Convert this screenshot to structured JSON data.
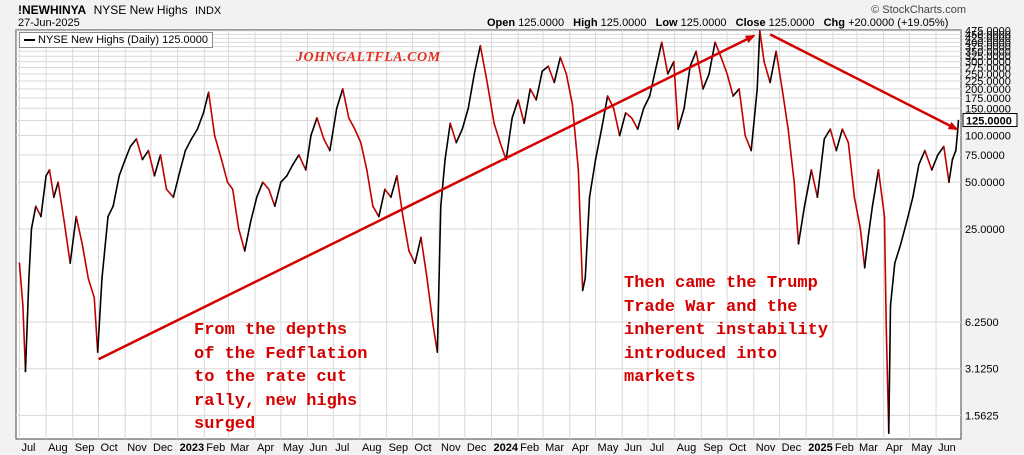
{
  "header": {
    "symbol": "!NEWHINYA",
    "name": "NYSE New Highs",
    "exchange": "INDX",
    "date": "27-Jun-2025",
    "brand": "© StockCharts.com",
    "open_label": "Open",
    "open_value": "125.0000",
    "high_label": "High",
    "high_value": "125.0000",
    "low_label": "Low",
    "low_value": "125.0000",
    "close_label": "Close",
    "close_value": "125.0000",
    "chg_label": "Chg",
    "chg_value": "+20.0000 (+19.05%)"
  },
  "legend": {
    "text": "NYSE New Highs (Daily) 125.0000"
  },
  "watermark": "JOHNGALTFLA.COM",
  "annotations": {
    "left": [
      "From the depths",
      "of the Fedflation",
      "to the rate cut",
      "rally, new highs",
      "surged"
    ],
    "right": [
      "Then came the Trump",
      "Trade War and the",
      "inherent instability",
      "introduced into",
      "markets"
    ]
  },
  "colors": {
    "line_up": "#000000",
    "line_down": "#c00000",
    "annotation": "#d40000",
    "watermark": "#e03020",
    "grid": "#d9d9d9"
  },
  "chart_data": {
    "type": "line",
    "scale": "log",
    "ylim": [
      1.1,
      480
    ],
    "y_ticks": [
      1.5625,
      3.125,
      6.25,
      25,
      50,
      75,
      100,
      125,
      150,
      175,
      200,
      225,
      250,
      275,
      300,
      325,
      350,
      375,
      400,
      425,
      450,
      475
    ],
    "y_tick_labels": [
      "1.5625",
      "3.1250",
      "6.2500",
      "25.0000",
      "50.0000",
      "75.0000",
      "100.0000",
      "125.0000",
      "150.0000",
      "175.0000",
      "200.0000",
      "225.0000",
      "250.0000",
      "275.0000",
      "300.0000",
      "325.0000",
      "350.0000",
      "375.0000",
      "400.0000",
      "425.0000",
      "450.0000",
      "475.0000"
    ],
    "x_labels": [
      "Jul",
      "Aug",
      "Sep",
      "Oct",
      "Nov",
      "Dec",
      "2023",
      "Feb",
      "Mar",
      "Apr",
      "May",
      "Jun",
      "Jul",
      "Aug",
      "Sep",
      "Oct",
      "Nov",
      "Dec",
      "2024",
      "Feb",
      "Mar",
      "Apr",
      "May",
      "Jun",
      "Jul",
      "Aug",
      "Sep",
      "Oct",
      "Nov",
      "Dec",
      "2025",
      "Feb",
      "Mar",
      "Apr",
      "May",
      "Jun"
    ],
    "x_label_dates": [
      "2022-07",
      "2022-08",
      "2022-09",
      "2022-10",
      "2022-11",
      "2022-12",
      "2023-01",
      "2023-02",
      "2023-03",
      "2023-04",
      "2023-05",
      "2023-06",
      "2023-07",
      "2023-08",
      "2023-09",
      "2023-10",
      "2023-11",
      "2023-12",
      "2024-01",
      "2024-02",
      "2024-03",
      "2024-04",
      "2024-05",
      "2024-06",
      "2024-07",
      "2024-08",
      "2024-09",
      "2024-10",
      "2024-11",
      "2024-12",
      "2025-01",
      "2025-02",
      "2025-03",
      "2025-04",
      "2025-05",
      "2025-06"
    ],
    "x_start": "2022-06-27",
    "x_end": "2025-06-30",
    "series": [
      {
        "name": "NYSE New Highs (Daily)",
        "points": [
          [
            "2022-07-01",
            15
          ],
          [
            "2022-07-05",
            8
          ],
          [
            "2022-07-08",
            3
          ],
          [
            "2022-07-12",
            12
          ],
          [
            "2022-07-15",
            25
          ],
          [
            "2022-07-20",
            35
          ],
          [
            "2022-07-26",
            30
          ],
          [
            "2022-08-01",
            55
          ],
          [
            "2022-08-05",
            60
          ],
          [
            "2022-08-10",
            40
          ],
          [
            "2022-08-15",
            50
          ],
          [
            "2022-08-22",
            28
          ],
          [
            "2022-08-29",
            15
          ],
          [
            "2022-09-05",
            30
          ],
          [
            "2022-09-12",
            20
          ],
          [
            "2022-09-19",
            12
          ],
          [
            "2022-09-26",
            9
          ],
          [
            "2022-09-30",
            4
          ],
          [
            "2022-10-05",
            12
          ],
          [
            "2022-10-12",
            30
          ],
          [
            "2022-10-18",
            35
          ],
          [
            "2022-10-25",
            55
          ],
          [
            "2022-11-01",
            70
          ],
          [
            "2022-11-07",
            85
          ],
          [
            "2022-11-14",
            95
          ],
          [
            "2022-11-21",
            70
          ],
          [
            "2022-11-28",
            80
          ],
          [
            "2022-12-05",
            55
          ],
          [
            "2022-12-12",
            75
          ],
          [
            "2022-12-19",
            45
          ],
          [
            "2022-12-27",
            40
          ],
          [
            "2023-01-04",
            60
          ],
          [
            "2023-01-10",
            80
          ],
          [
            "2023-01-17",
            95
          ],
          [
            "2023-01-24",
            110
          ],
          [
            "2023-01-31",
            140
          ],
          [
            "2023-02-06",
            190
          ],
          [
            "2023-02-13",
            100
          ],
          [
            "2023-02-21",
            70
          ],
          [
            "2023-02-28",
            50
          ],
          [
            "2023-03-06",
            45
          ],
          [
            "2023-03-13",
            25
          ],
          [
            "2023-03-20",
            18
          ],
          [
            "2023-03-27",
            28
          ],
          [
            "2023-04-03",
            40
          ],
          [
            "2023-04-10",
            50
          ],
          [
            "2023-04-17",
            45
          ],
          [
            "2023-04-24",
            35
          ],
          [
            "2023-05-01",
            50
          ],
          [
            "2023-05-08",
            55
          ],
          [
            "2023-05-15",
            65
          ],
          [
            "2023-05-22",
            75
          ],
          [
            "2023-05-30",
            60
          ],
          [
            "2023-06-05",
            100
          ],
          [
            "2023-06-12",
            130
          ],
          [
            "2023-06-20",
            95
          ],
          [
            "2023-06-27",
            80
          ],
          [
            "2023-07-05",
            150
          ],
          [
            "2023-07-12",
            200
          ],
          [
            "2023-07-19",
            130
          ],
          [
            "2023-07-26",
            110
          ],
          [
            "2023-08-02",
            90
          ],
          [
            "2023-08-09",
            60
          ],
          [
            "2023-08-16",
            35
          ],
          [
            "2023-08-23",
            30
          ],
          [
            "2023-08-30",
            45
          ],
          [
            "2023-09-06",
            40
          ],
          [
            "2023-09-13",
            55
          ],
          [
            "2023-09-20",
            30
          ],
          [
            "2023-09-27",
            18
          ],
          [
            "2023-10-04",
            15
          ],
          [
            "2023-10-11",
            22
          ],
          [
            "2023-10-18",
            12
          ],
          [
            "2023-10-25",
            6
          ],
          [
            "2023-10-30",
            4
          ],
          [
            "2023-11-03",
            35
          ],
          [
            "2023-11-08",
            70
          ],
          [
            "2023-11-14",
            120
          ],
          [
            "2023-11-21",
            90
          ],
          [
            "2023-11-28",
            110
          ],
          [
            "2023-12-05",
            150
          ],
          [
            "2023-12-12",
            250
          ],
          [
            "2023-12-19",
            380
          ],
          [
            "2023-12-27",
            220
          ],
          [
            "2024-01-04",
            120
          ],
          [
            "2024-01-11",
            90
          ],
          [
            "2024-01-18",
            70
          ],
          [
            "2024-01-25",
            130
          ],
          [
            "2024-02-01",
            170
          ],
          [
            "2024-02-08",
            120
          ],
          [
            "2024-02-15",
            200
          ],
          [
            "2024-02-22",
            170
          ],
          [
            "2024-02-29",
            260
          ],
          [
            "2024-03-07",
            280
          ],
          [
            "2024-03-14",
            220
          ],
          [
            "2024-03-21",
            320
          ],
          [
            "2024-03-28",
            250
          ],
          [
            "2024-04-04",
            160
          ],
          [
            "2024-04-11",
            60
          ],
          [
            "2024-04-16",
            10
          ],
          [
            "2024-04-19",
            12
          ],
          [
            "2024-04-24",
            40
          ],
          [
            "2024-05-01",
            70
          ],
          [
            "2024-05-08",
            110
          ],
          [
            "2024-05-15",
            180
          ],
          [
            "2024-05-22",
            150
          ],
          [
            "2024-05-29",
            100
          ],
          [
            "2024-06-05",
            140
          ],
          [
            "2024-06-12",
            130
          ],
          [
            "2024-06-19",
            110
          ],
          [
            "2024-06-26",
            150
          ],
          [
            "2024-07-03",
            180
          ],
          [
            "2024-07-10",
            270
          ],
          [
            "2024-07-17",
            400
          ],
          [
            "2024-07-24",
            250
          ],
          [
            "2024-07-31",
            300
          ],
          [
            "2024-08-05",
            110
          ],
          [
            "2024-08-12",
            150
          ],
          [
            "2024-08-19",
            280
          ],
          [
            "2024-08-26",
            350
          ],
          [
            "2024-09-03",
            200
          ],
          [
            "2024-09-10",
            250
          ],
          [
            "2024-09-17",
            400
          ],
          [
            "2024-09-24",
            320
          ],
          [
            "2024-10-01",
            250
          ],
          [
            "2024-10-08",
            180
          ],
          [
            "2024-10-15",
            200
          ],
          [
            "2024-10-22",
            100
          ],
          [
            "2024-10-29",
            80
          ],
          [
            "2024-11-05",
            200
          ],
          [
            "2024-11-08",
            475
          ],
          [
            "2024-11-13",
            300
          ],
          [
            "2024-11-20",
            220
          ],
          [
            "2024-11-27",
            350
          ],
          [
            "2024-12-04",
            200
          ],
          [
            "2024-12-11",
            110
          ],
          [
            "2024-12-18",
            50
          ],
          [
            "2024-12-23",
            20
          ],
          [
            "2024-12-30",
            35
          ],
          [
            "2025-01-07",
            60
          ],
          [
            "2025-01-14",
            40
          ],
          [
            "2025-01-22",
            95
          ],
          [
            "2025-01-29",
            110
          ],
          [
            "2025-02-05",
            80
          ],
          [
            "2025-02-12",
            110
          ],
          [
            "2025-02-19",
            90
          ],
          [
            "2025-02-26",
            40
          ],
          [
            "2025-03-05",
            25
          ],
          [
            "2025-03-10",
            14
          ],
          [
            "2025-03-14",
            22
          ],
          [
            "2025-03-19",
            35
          ],
          [
            "2025-03-26",
            60
          ],
          [
            "2025-04-02",
            30
          ],
          [
            "2025-04-04",
            6
          ],
          [
            "2025-04-07",
            1.2
          ],
          [
            "2025-04-09",
            8
          ],
          [
            "2025-04-14",
            15
          ],
          [
            "2025-04-21",
            20
          ],
          [
            "2025-04-28",
            28
          ],
          [
            "2025-05-05",
            40
          ],
          [
            "2025-05-12",
            65
          ],
          [
            "2025-05-19",
            80
          ],
          [
            "2025-05-27",
            60
          ],
          [
            "2025-06-03",
            75
          ],
          [
            "2025-06-10",
            85
          ],
          [
            "2025-06-16",
            50
          ],
          [
            "2025-06-20",
            70
          ],
          [
            "2025-06-24",
            80
          ],
          [
            "2025-06-26",
            105
          ],
          [
            "2025-06-27",
            125
          ]
        ]
      }
    ],
    "trend_arrows": [
      {
        "from": [
          "2022-10-01",
          3.6
        ],
        "to": [
          "2024-11-01",
          440
        ]
      },
      {
        "from": [
          "2024-11-20",
          450
        ],
        "to": [
          "2025-06-25",
          110
        ]
      }
    ]
  }
}
